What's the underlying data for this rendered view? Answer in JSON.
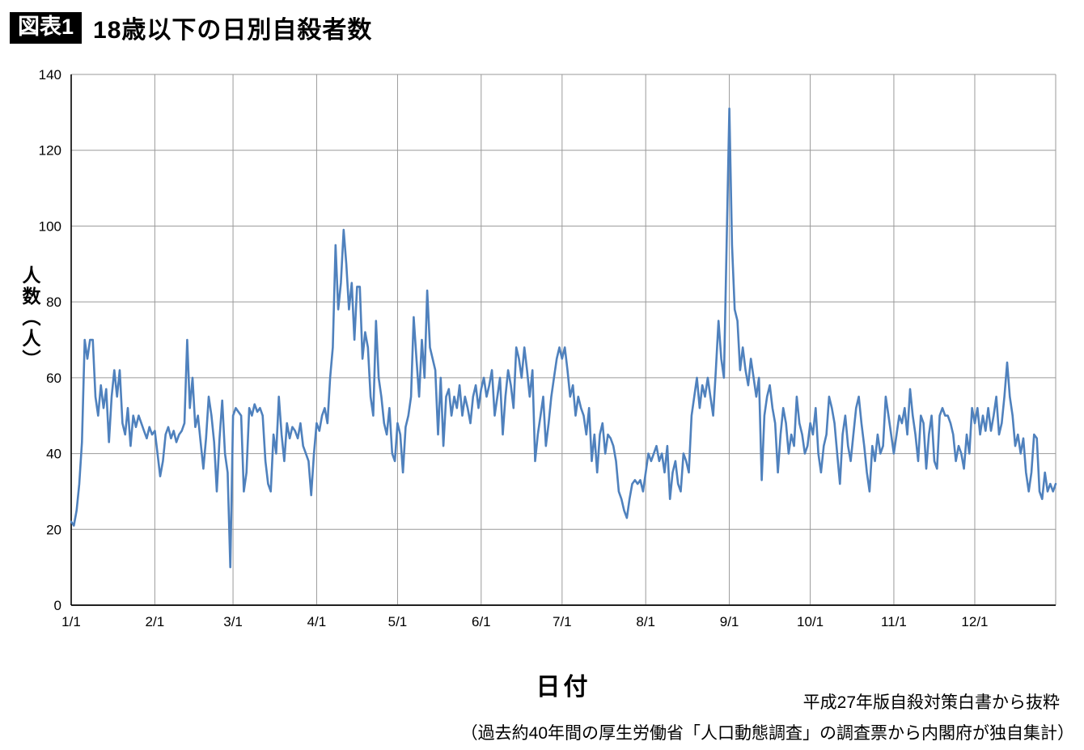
{
  "header": {
    "badge": "図表1",
    "title": "18歳以下の日別自殺者数"
  },
  "chart_data": {
    "type": "line",
    "title": "18歳以下の日別自殺者数",
    "xlabel": "日付",
    "ylabel": "人数（人）",
    "ylim": [
      0,
      140
    ],
    "yticks": [
      0,
      20,
      40,
      60,
      80,
      100,
      120,
      140
    ],
    "categories": [
      "1/1",
      "2/1",
      "3/1",
      "4/1",
      "5/1",
      "6/1",
      "7/1",
      "8/1",
      "9/1",
      "10/1",
      "11/1",
      "12/1"
    ],
    "month_start_indices": [
      0,
      31,
      60,
      91,
      121,
      152,
      182,
      213,
      244,
      274,
      305,
      335
    ],
    "num_days": 366,
    "grid": true,
    "legend": "none",
    "line_color": "#4F81BD",
    "grid_color": "#9a9a9a",
    "axis_color": "#000000",
    "notable_points": {
      "max": {
        "date": "9/1",
        "value": 131
      },
      "second_peak": {
        "date": "4/11",
        "value": 99
      },
      "min": {
        "date": "2/29",
        "value": 10
      }
    },
    "values": [
      22,
      21,
      25,
      32,
      43,
      70,
      65,
      70,
      70,
      55,
      50,
      58,
      52,
      57,
      43,
      55,
      62,
      55,
      62,
      48,
      45,
      52,
      42,
      50,
      47,
      50,
      48,
      46,
      44,
      47,
      45,
      46,
      40,
      34,
      38,
      45,
      47,
      44,
      46,
      43,
      45,
      46,
      48,
      70,
      52,
      60,
      47,
      50,
      43,
      36,
      44,
      55,
      50,
      43,
      30,
      44,
      54,
      40,
      35,
      10,
      50,
      52,
      51,
      50,
      30,
      35,
      52,
      50,
      53,
      51,
      52,
      50,
      38,
      32,
      30,
      45,
      40,
      55,
      45,
      38,
      48,
      44,
      47,
      46,
      44,
      48,
      42,
      40,
      38,
      29,
      40,
      48,
      46,
      50,
      52,
      48,
      60,
      68,
      95,
      78,
      85,
      99,
      90,
      78,
      85,
      70,
      84,
      84,
      65,
      72,
      68,
      55,
      50,
      75,
      60,
      55,
      48,
      45,
      52,
      40,
      38,
      48,
      45,
      35,
      47,
      50,
      55,
      76,
      65,
      55,
      70,
      60,
      83,
      68,
      65,
      62,
      45,
      60,
      42,
      55,
      57,
      50,
      55,
      52,
      58,
      50,
      55,
      52,
      48,
      55,
      58,
      52,
      57,
      60,
      55,
      58,
      62,
      50,
      55,
      60,
      45,
      55,
      62,
      58,
      52,
      68,
      65,
      60,
      68,
      62,
      55,
      62,
      38,
      45,
      50,
      55,
      42,
      48,
      55,
      60,
      65,
      68,
      65,
      68,
      62,
      55,
      58,
      50,
      55,
      52,
      50,
      45,
      52,
      38,
      45,
      35,
      45,
      48,
      40,
      45,
      44,
      42,
      38,
      30,
      28,
      25,
      23,
      28,
      32,
      33,
      32,
      33,
      30,
      35,
      40,
      38,
      40,
      42,
      38,
      40,
      35,
      42,
      28,
      35,
      38,
      32,
      30,
      40,
      38,
      35,
      50,
      55,
      60,
      52,
      58,
      55,
      60,
      55,
      50,
      62,
      75,
      65,
      60,
      95,
      131,
      95,
      78,
      75,
      62,
      68,
      62,
      58,
      65,
      60,
      55,
      60,
      33,
      50,
      55,
      58,
      52,
      48,
      35,
      45,
      52,
      48,
      40,
      45,
      42,
      55,
      48,
      45,
      40,
      42,
      48,
      45,
      52,
      40,
      35,
      42,
      45,
      55,
      52,
      48,
      40,
      32,
      45,
      50,
      42,
      38,
      45,
      52,
      55,
      48,
      42,
      35,
      30,
      42,
      38,
      45,
      40,
      42,
      55,
      50,
      45,
      40,
      45,
      50,
      48,
      52,
      45,
      57,
      50,
      45,
      38,
      50,
      48,
      36,
      45,
      50,
      38,
      36,
      50,
      52,
      50,
      50,
      48,
      45,
      38,
      42,
      40,
      36,
      45,
      40,
      52,
      48,
      52,
      45,
      50,
      46,
      52,
      46,
      50,
      55,
      45,
      48,
      55,
      64,
      55,
      50,
      42,
      45,
      40,
      44,
      35,
      30,
      35,
      45,
      44,
      30,
      28,
      35,
      30,
      32,
      30,
      32
    ]
  },
  "footer": {
    "source_line1": "平成27年版自殺対策白書から抜粋",
    "source_line2": "（過去約40年間の厚生労働省「人口動態調査」の調査票から内閣府が独自集計）"
  }
}
